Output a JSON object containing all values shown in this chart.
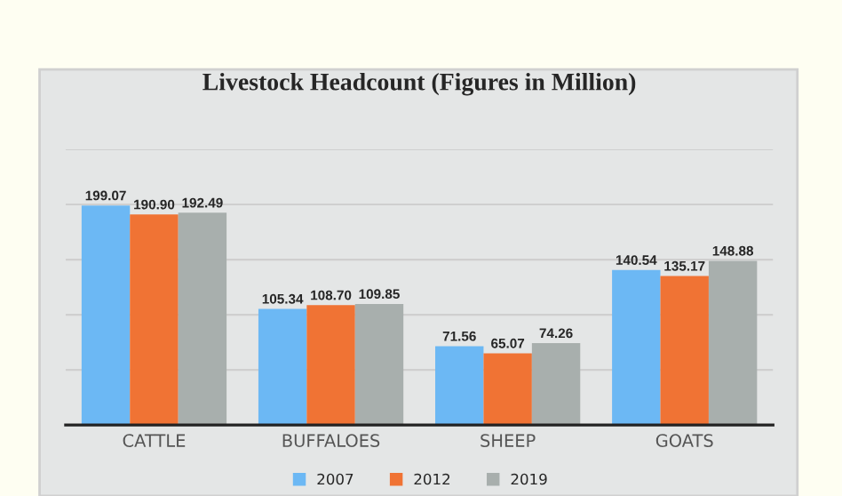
{
  "chart_data": {
    "type": "bar",
    "title": "Livestock Headcount (Figures in Million)",
    "categories": [
      "CATTLE",
      "BUFFALOES",
      "SHEEP",
      "GOATS"
    ],
    "series": [
      {
        "name": "2007",
        "color": "#6cb8f4",
        "values": [
          199.07,
          105.34,
          71.56,
          140.54
        ],
        "value_labels": [
          "199.07",
          "105.34",
          "71.56",
          "140.54"
        ]
      },
      {
        "name": "2012",
        "color": "#f07334",
        "values": [
          190.9,
          108.7,
          65.07,
          135.17
        ],
        "value_labels": [
          "190.90",
          "108.70",
          "65.07",
          "135.17"
        ]
      },
      {
        "name": "2019",
        "color": "#a8afad",
        "values": [
          192.49,
          109.85,
          74.26,
          148.88
        ],
        "value_labels": [
          "192.49",
          "109.85",
          "74.26",
          "148.88"
        ]
      }
    ],
    "ylim": [
      0,
      250
    ],
    "yticks": [
      {
        "value": 50,
        "label": null
      },
      {
        "value": 100,
        "label": null
      },
      {
        "value": 150,
        "label": null
      },
      {
        "value": 200,
        "label": null
      },
      {
        "value": 250,
        "label": null
      }
    ],
    "grid": "y",
    "legend": "bottom",
    "tick_labels": "x"
  }
}
